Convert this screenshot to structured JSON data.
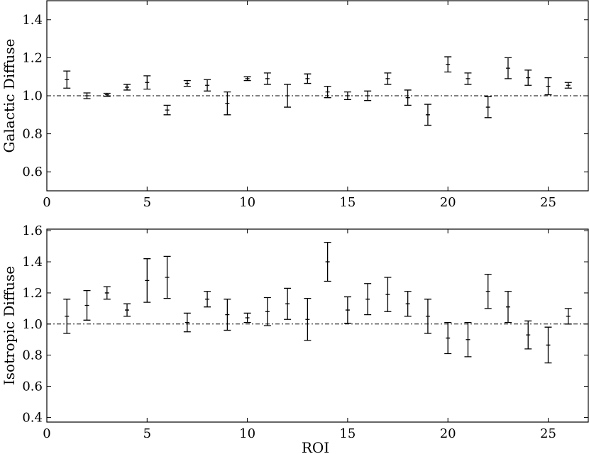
{
  "chart_data": [
    {
      "type": "errorbar",
      "ylabel": "Galactic Diffuse",
      "x": [
        1,
        2,
        3,
        4,
        5,
        6,
        7,
        8,
        9,
        10,
        11,
        12,
        13,
        14,
        15,
        16,
        17,
        18,
        19,
        20,
        21,
        22,
        23,
        24,
        25,
        26
      ],
      "values": [
        1.085,
        1.0,
        1.005,
        1.045,
        1.07,
        0.925,
        1.065,
        1.055,
        0.96,
        1.09,
        1.09,
        1.0,
        1.09,
        1.02,
        1.0,
        1.0,
        1.09,
        0.99,
        0.9,
        1.165,
        1.09,
        0.94,
        1.145,
        1.095,
        1.05,
        1.055
      ],
      "errors": [
        0.045,
        0.015,
        0.008,
        0.015,
        0.035,
        0.025,
        0.015,
        0.03,
        0.06,
        0.01,
        0.03,
        0.06,
        0.025,
        0.03,
        0.02,
        0.025,
        0.03,
        0.04,
        0.055,
        0.04,
        0.03,
        0.055,
        0.055,
        0.04,
        0.045,
        0.015
      ],
      "color": "#000000",
      "hline": 1.0,
      "xlim": [
        0,
        27
      ],
      "xticks": [
        0,
        5,
        10,
        15,
        20,
        25
      ],
      "ylim": [
        0.5,
        1.5
      ],
      "yticks": [
        0.6,
        0.8,
        {
          "value": 1.0,
          "label": "1.0"
        },
        1.2,
        1.4
      ]
    },
    {
      "type": "errorbar",
      "ylabel": "Isotropic Diffuse",
      "xlabel": "ROI",
      "x": [
        1,
        2,
        3,
        4,
        5,
        6,
        7,
        8,
        9,
        10,
        11,
        12,
        13,
        14,
        15,
        16,
        17,
        18,
        19,
        20,
        21,
        22,
        23,
        24,
        25,
        26
      ],
      "values": [
        1.05,
        1.12,
        1.2,
        1.09,
        1.28,
        1.3,
        1.01,
        1.16,
        1.06,
        1.04,
        1.08,
        1.13,
        1.03,
        1.4,
        1.09,
        1.16,
        1.19,
        1.13,
        1.05,
        0.91,
        0.9,
        1.21,
        1.11,
        0.93,
        0.865,
        1.05
      ],
      "errors": [
        0.11,
        0.095,
        0.04,
        0.04,
        0.14,
        0.135,
        0.06,
        0.05,
        0.1,
        0.03,
        0.09,
        0.1,
        0.135,
        0.125,
        0.085,
        0.1,
        0.11,
        0.08,
        0.11,
        0.1,
        0.11,
        0.11,
        0.1,
        0.09,
        0.115,
        0.05
      ],
      "color": "#000000",
      "hline": 1.0,
      "xlim": [
        0,
        27
      ],
      "xticks": [
        0,
        5,
        10,
        15,
        20,
        25
      ],
      "ylim": [
        0.37,
        1.61
      ],
      "yticks": [
        0.4,
        0.6,
        0.8,
        {
          "value": 1.0,
          "label": "1.0"
        },
        1.2,
        1.4,
        1.6
      ]
    }
  ]
}
